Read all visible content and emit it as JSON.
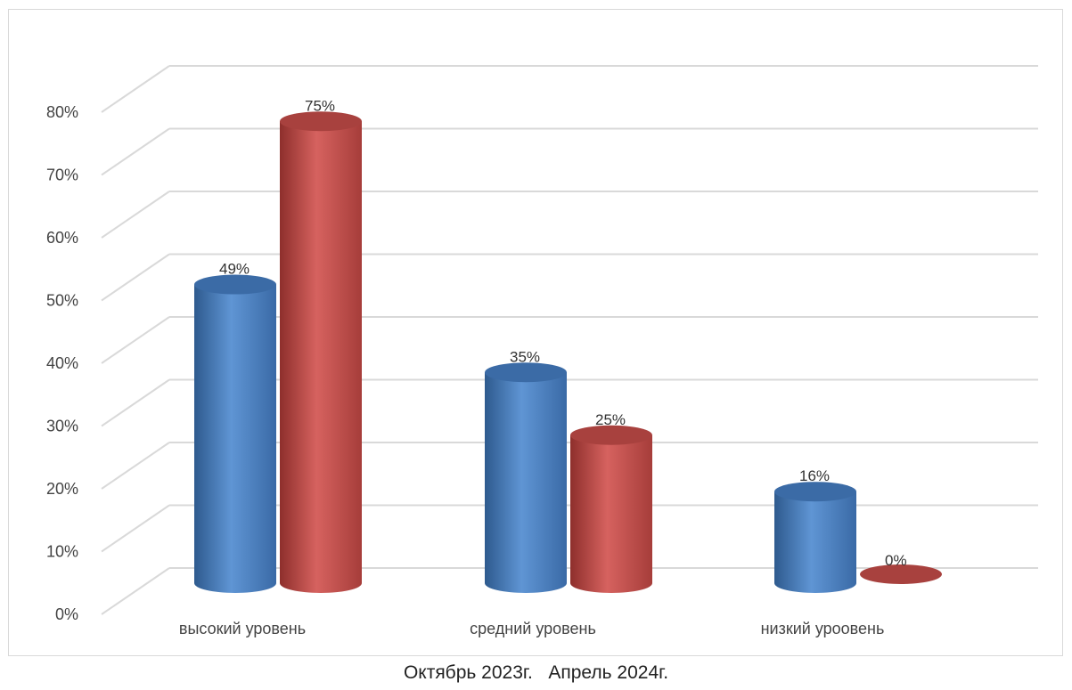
{
  "chart_data": {
    "type": "bar",
    "style": "3d-cylinder",
    "categories": [
      "высокий уровень",
      "средний уровень",
      "низкий уроовень"
    ],
    "series": [
      {
        "name": "Октябрь 2023г.",
        "values": [
          49,
          35,
          16
        ],
        "color": "#4f81bd"
      },
      {
        "name": "Апрель 2024г.",
        "values": [
          75,
          25,
          0
        ],
        "color": "#c0504d"
      }
    ],
    "data_labels": [
      [
        "49%",
        "35%",
        "16%"
      ],
      [
        "75%",
        "25%",
        "0%"
      ]
    ],
    "y_ticks": [
      "0%",
      "10%",
      "20%",
      "30%",
      "40%",
      "50%",
      "60%",
      "70%",
      "80%"
    ],
    "ylim": [
      0,
      80
    ],
    "grid": true,
    "legend_position": "bottom"
  }
}
